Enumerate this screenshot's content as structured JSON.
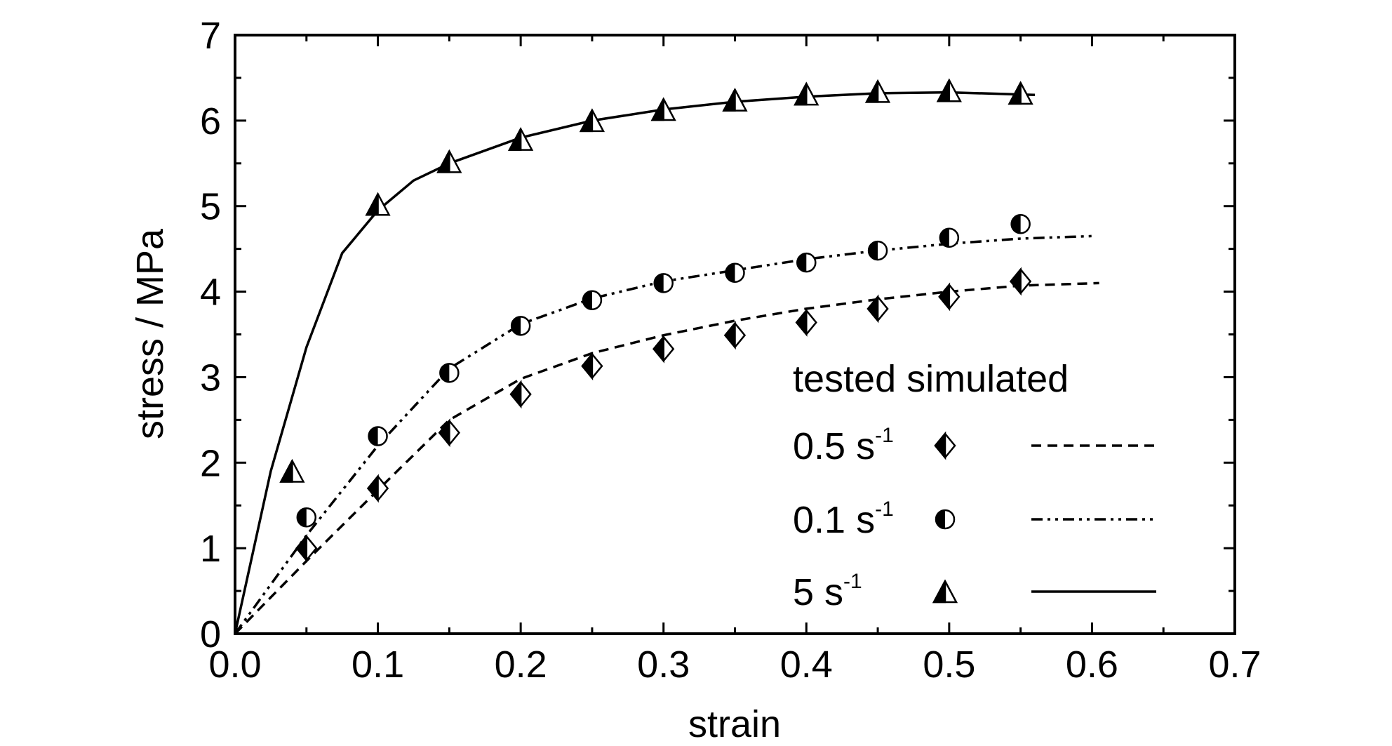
{
  "chart_data": {
    "type": "line",
    "title": "",
    "xlabel": "strain",
    "ylabel": "stress / MPa",
    "xlim": [
      0,
      0.7
    ],
    "ylim": [
      0,
      7
    ],
    "xticks": [
      0.0,
      0.1,
      0.2,
      0.3,
      0.4,
      0.5,
      0.6,
      0.7
    ],
    "xtick_labels": [
      "0.0",
      "0.1",
      "0.2",
      "0.3",
      "0.4",
      "0.5",
      "0.6",
      "0.7"
    ],
    "yticks": [
      0,
      1,
      2,
      3,
      4,
      5,
      6,
      7
    ],
    "ytick_labels": [
      "0",
      "1",
      "2",
      "3",
      "4",
      "5",
      "6",
      "7"
    ],
    "grid": false,
    "legend": {
      "position": "lower-right",
      "header": "tested simulated",
      "entries": [
        {
          "label": "0.5 s",
          "sup": "-1",
          "marker": "diamond",
          "line": "dashed"
        },
        {
          "label": "0.1 s",
          "sup": "-1",
          "marker": "circle",
          "line": "dash-dot-dot"
        },
        {
          "label": "5 s",
          "sup": "-1",
          "marker": "triangle",
          "line": "solid"
        }
      ]
    },
    "series": [
      {
        "key": "rate_0_5",
        "marker": "diamond",
        "line": "dashed",
        "tested": {
          "x": [
            0.05,
            0.1,
            0.15,
            0.2,
            0.25,
            0.3,
            0.35,
            0.4,
            0.45,
            0.5,
            0.55
          ],
          "y": [
            1.0,
            1.7,
            2.35,
            2.8,
            3.13,
            3.33,
            3.49,
            3.64,
            3.8,
            3.94,
            4.12
          ]
        },
        "simulated": {
          "x": [
            0.0,
            0.05,
            0.1,
            0.15,
            0.2,
            0.25,
            0.3,
            0.35,
            0.4,
            0.45,
            0.5,
            0.55,
            0.605
          ],
          "y": [
            0.0,
            0.85,
            1.68,
            2.5,
            2.98,
            3.28,
            3.49,
            3.66,
            3.8,
            3.91,
            4.0,
            4.07,
            4.1
          ]
        }
      },
      {
        "key": "rate_0_1",
        "marker": "circle",
        "line": "dash-dot-dot",
        "tested": {
          "x": [
            0.05,
            0.1,
            0.15,
            0.2,
            0.25,
            0.3,
            0.35,
            0.4,
            0.45,
            0.5,
            0.55
          ],
          "y": [
            1.36,
            2.31,
            3.05,
            3.6,
            3.9,
            4.1,
            4.22,
            4.34,
            4.48,
            4.63,
            4.79
          ]
        },
        "simulated": {
          "x": [
            0.0,
            0.05,
            0.1,
            0.15,
            0.2,
            0.25,
            0.3,
            0.35,
            0.4,
            0.45,
            0.5,
            0.55,
            0.6
          ],
          "y": [
            0.0,
            1.15,
            2.2,
            3.1,
            3.62,
            3.92,
            4.12,
            4.25,
            4.38,
            4.48,
            4.56,
            4.62,
            4.65
          ]
        }
      },
      {
        "key": "rate_5",
        "marker": "triangle",
        "line": "solid",
        "tested": {
          "x": [
            0.04,
            0.1,
            0.15,
            0.2,
            0.25,
            0.3,
            0.35,
            0.4,
            0.45,
            0.5,
            0.55
          ],
          "y": [
            1.9,
            5.02,
            5.52,
            5.78,
            6.0,
            6.13,
            6.24,
            6.31,
            6.34,
            6.35,
            6.32
          ]
        },
        "simulated": {
          "x": [
            0.0,
            0.025,
            0.05,
            0.075,
            0.1,
            0.125,
            0.15,
            0.2,
            0.25,
            0.3,
            0.35,
            0.4,
            0.45,
            0.5,
            0.56
          ],
          "y": [
            0.0,
            1.9,
            3.35,
            4.45,
            4.95,
            5.3,
            5.5,
            5.8,
            6.0,
            6.13,
            6.22,
            6.28,
            6.32,
            6.33,
            6.3
          ]
        }
      }
    ]
  }
}
